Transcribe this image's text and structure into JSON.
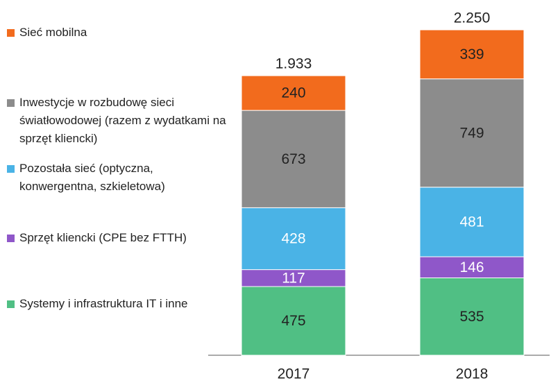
{
  "chart_data": {
    "type": "stacked-bar",
    "categories": [
      "2017",
      "2018"
    ],
    "series": [
      {
        "name": "Systemy i infrastruktura IT i inne",
        "color": "#50bf84",
        "label_color": "#222222",
        "values": [
          475,
          535
        ]
      },
      {
        "name": "Sprzęt kliencki (CPE bez FTTH)",
        "color": "#8f57c9",
        "label_color": "#ffffff",
        "values": [
          117,
          146
        ]
      },
      {
        "name": "Pozostała sieć (optyczna, konwergentna, szkieletowa)",
        "color": "#4ab3e6",
        "label_color": "#ffffff",
        "values": [
          428,
          481
        ]
      },
      {
        "name": "Inwestycje w rozbudowę sieci światłowodowej (razem z wydatkami na sprzęt kliencki)",
        "color": "#8c8c8c",
        "label_color": "#222222",
        "values": [
          673,
          749
        ]
      },
      {
        "name": "Sieć mobilna",
        "color": "#f26b1d",
        "label_color": "#222222",
        "values": [
          240,
          339
        ]
      }
    ],
    "totals": {
      "values": [
        1933,
        2250
      ],
      "value_labels": [
        "1.933",
        "2.250"
      ]
    }
  }
}
